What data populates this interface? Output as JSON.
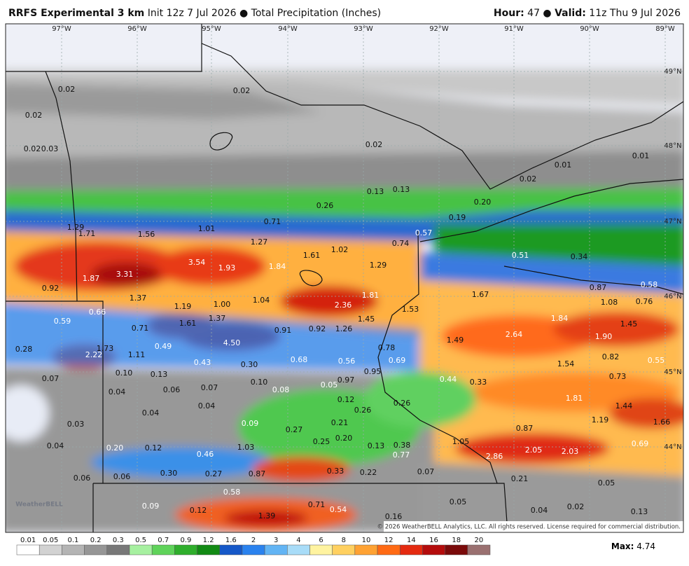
{
  "header": {
    "model": "RRFS Experimental 3 km",
    "init": "Init 12z 7 Jul 2026",
    "field": "Total Precipitation (Inches)",
    "hour_label": "Hour:",
    "hour": "47",
    "valid_label": "Valid:",
    "valid": "11z Thu 9 Jul 2026"
  },
  "map": {
    "longitudes": [
      "97°W",
      "96°W",
      "95°W",
      "94°W",
      "93°W",
      "92°W",
      "91°W",
      "90°W",
      "89°W"
    ],
    "latitudes": [
      "49°N",
      "48°N",
      "47°N",
      "46°N",
      "45°N",
      "44°N"
    ],
    "labels": [
      "0.02",
      "0.02",
      "0.02",
      "0.02",
      "0.03",
      "0.02",
      "0.01",
      "0.01",
      "0.02",
      "0.13",
      "0.13",
      "0.26",
      "0.20",
      "0.19",
      "0.71",
      "1.29",
      "1.71",
      "1.56",
      "1.01",
      "0.57",
      "1.27",
      "0.74",
      "1.02",
      "1.61",
      "0.51",
      "0.34",
      "3.54",
      "1.93",
      "1.84",
      "1.29",
      "3.31",
      "1.87",
      "0.87",
      "0.58",
      "0.92",
      "1.81",
      "1.67",
      "1.37",
      "1.04",
      "1.08",
      "0.76",
      "1.19",
      "1.00",
      "2.36",
      "1.53",
      "0.66",
      "1.84",
      "1.37",
      "1.45",
      "1.45",
      "0.59",
      "1.61",
      "0.71",
      "0.91",
      "0.92",
      "1.26",
      "2.64",
      "1.90",
      "1.49",
      "4.50",
      "0.49",
      "1.73",
      "0.78",
      "0.28",
      "2.22",
      "1.11",
      "0.82",
      "0.68",
      "0.56",
      "0.69",
      "0.55",
      "0.43",
      "0.30",
      "1.54",
      "0.95",
      "0.10",
      "0.13",
      "0.73",
      "0.07",
      "0.97",
      "0.44",
      "0.33",
      "0.10",
      "0.05",
      "0.08",
      "0.06",
      "0.07",
      "0.04",
      "0.12",
      "0.26",
      "1.81",
      "1.44",
      "0.04",
      "0.26",
      "0.04",
      "1.19",
      "1.66",
      "0.09",
      "0.03",
      "0.21",
      "0.87",
      "0.27",
      "0.25",
      "0.20",
      "1.05",
      "0.69",
      "0.04",
      "1.03",
      "0.20",
      "0.12",
      "0.13",
      "0.38",
      "2.05",
      "2.03",
      "0.46",
      "0.77",
      "2.86",
      "0.33",
      "0.22",
      "0.30",
      "0.27",
      "0.87",
      "0.07",
      "0.06",
      "0.06",
      "0.21",
      "0.05",
      "0.58",
      "0.09",
      "0.71",
      "0.05",
      "0.54",
      "0.12",
      "0.04",
      "0.02",
      "0.13",
      "1.39",
      "0.16"
    ]
  },
  "logo": "WeatherBELL",
  "copyright": "© 2026 WeatherBELL Analytics, LLC. All rights reserved. License required for commercial distribution.",
  "legend": {
    "ticks": [
      "0.01",
      "0.05",
      "0.1",
      "0.2",
      "0.3",
      "0.5",
      "0.7",
      "0.9",
      "1.2",
      "1.6",
      "2",
      "3",
      "4",
      "6",
      "8",
      "10",
      "12",
      "14",
      "16",
      "18",
      "20"
    ],
    "colors": [
      "#ffffff",
      "#d2d2d2",
      "#b4b4b4",
      "#969696",
      "#787878",
      "#a6f0a0",
      "#5fd35a",
      "#2fae2c",
      "#128a14",
      "#1558c8",
      "#2a82ee",
      "#62b4f4",
      "#a8dcf8",
      "#fff3a0",
      "#ffd060",
      "#ffa233",
      "#ff6a14",
      "#e42a10",
      "#b40c0c",
      "#7a0a0a",
      "#9a7070"
    ]
  },
  "max": {
    "label": "Max:",
    "value": "4.74"
  }
}
